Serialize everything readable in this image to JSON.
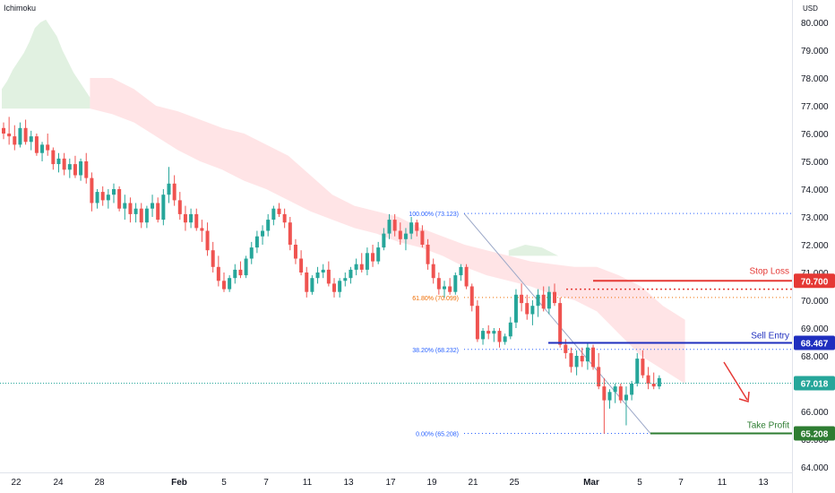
{
  "header": {
    "indicator": "Ichimoku",
    "currency": "USD"
  },
  "colors": {
    "up": "#26a69a",
    "down": "#ef5350",
    "cloud_bull": "#c8e6c9",
    "cloud_bear": "#ffcdd2",
    "stop_loss": "#e53935",
    "sell_entry": "#1f2fbf",
    "take_profit": "#2e7d32",
    "current": "#26a69a",
    "fib_blue": "#2962ff",
    "fib_orange": "#ef6c00"
  },
  "chart_data": {
    "type": "candlestick",
    "yaxis": {
      "ticks": [
        "64.000",
        "65.000",
        "66.000",
        "67.000",
        "68.000",
        "69.000",
        "70.000",
        "71.000",
        "72.000",
        "73.000",
        "74.000",
        "75.000",
        "76.000",
        "77.000",
        "78.000",
        "79.000",
        "80.000"
      ],
      "ylim": [
        64,
        80.5
      ]
    },
    "xaxis": {
      "ticks": [
        "22",
        "24",
        "28",
        "Feb",
        "5",
        "7",
        "11",
        "13",
        "17",
        "19",
        "21",
        "25",
        "Mar",
        "5",
        "7",
        "11",
        "13"
      ]
    },
    "candles": [
      [
        76.2,
        76.4,
        75.8,
        76.0
      ],
      [
        76.0,
        76.6,
        75.6,
        75.9
      ],
      [
        75.9,
        76.3,
        75.4,
        75.6
      ],
      [
        75.6,
        76.4,
        75.5,
        76.2
      ],
      [
        76.2,
        76.5,
        75.6,
        75.7
      ],
      [
        75.7,
        76.1,
        75.4,
        75.9
      ],
      [
        75.9,
        76.0,
        75.2,
        75.3
      ],
      [
        75.3,
        75.7,
        75.0,
        75.6
      ],
      [
        75.6,
        76.0,
        75.2,
        75.4
      ],
      [
        75.4,
        75.5,
        74.7,
        74.9
      ],
      [
        74.9,
        75.3,
        74.6,
        75.1
      ],
      [
        75.1,
        75.3,
        74.5,
        74.7
      ],
      [
        74.7,
        75.1,
        74.4,
        74.9
      ],
      [
        74.9,
        75.2,
        74.4,
        74.5
      ],
      [
        74.5,
        75.1,
        74.3,
        75.0
      ],
      [
        75.0,
        75.3,
        74.2,
        74.4
      ],
      [
        74.4,
        74.6,
        73.2,
        73.5
      ],
      [
        73.5,
        74.0,
        73.3,
        73.9
      ],
      [
        73.9,
        74.1,
        73.4,
        73.6
      ],
      [
        73.6,
        74.0,
        73.3,
        73.8
      ],
      [
        73.8,
        74.2,
        73.5,
        74.0
      ],
      [
        74.0,
        74.1,
        73.2,
        73.3
      ],
      [
        73.3,
        73.8,
        72.9,
        73.5
      ],
      [
        73.5,
        73.7,
        72.8,
        73.1
      ],
      [
        73.1,
        73.5,
        72.8,
        73.3
      ],
      [
        73.3,
        73.5,
        72.6,
        72.8
      ],
      [
        72.8,
        73.4,
        72.6,
        73.3
      ],
      [
        73.3,
        73.8,
        73.0,
        73.5
      ],
      [
        73.5,
        73.7,
        72.8,
        72.9
      ],
      [
        72.9,
        74.0,
        72.7,
        73.8
      ],
      [
        73.8,
        74.8,
        73.5,
        74.2
      ],
      [
        74.2,
        74.5,
        73.4,
        73.6
      ],
      [
        73.6,
        73.9,
        72.9,
        73.1
      ],
      [
        73.1,
        73.4,
        72.5,
        72.8
      ],
      [
        72.8,
        73.3,
        72.6,
        73.1
      ],
      [
        73.1,
        73.3,
        72.5,
        72.6
      ],
      [
        72.6,
        72.9,
        72.1,
        72.5
      ],
      [
        72.5,
        72.8,
        71.6,
        71.8
      ],
      [
        71.8,
        72.1,
        71.0,
        71.2
      ],
      [
        71.2,
        71.6,
        70.5,
        70.7
      ],
      [
        70.7,
        71.0,
        70.3,
        70.4
      ],
      [
        70.4,
        70.9,
        70.3,
        70.8
      ],
      [
        70.8,
        71.3,
        70.6,
        71.1
      ],
      [
        71.1,
        71.4,
        70.8,
        70.9
      ],
      [
        70.9,
        71.6,
        70.8,
        71.5
      ],
      [
        71.5,
        72.1,
        71.3,
        71.9
      ],
      [
        71.9,
        72.5,
        71.7,
        72.3
      ],
      [
        72.3,
        72.7,
        72.0,
        72.5
      ],
      [
        72.5,
        73.1,
        72.3,
        72.9
      ],
      [
        72.9,
        73.4,
        72.7,
        73.3
      ],
      [
        73.3,
        73.5,
        73.0,
        73.1
      ],
      [
        73.1,
        73.3,
        72.6,
        72.8
      ],
      [
        72.8,
        73.0,
        71.8,
        72.0
      ],
      [
        72.0,
        72.2,
        71.3,
        71.5
      ],
      [
        71.5,
        71.8,
        70.9,
        71.0
      ],
      [
        71.0,
        71.2,
        70.1,
        70.3
      ],
      [
        70.3,
        70.9,
        70.2,
        70.8
      ],
      [
        70.8,
        71.2,
        70.6,
        71.0
      ],
      [
        71.0,
        71.3,
        70.8,
        71.1
      ],
      [
        71.1,
        71.4,
        70.5,
        70.6
      ],
      [
        70.6,
        70.8,
        70.1,
        70.3
      ],
      [
        70.3,
        70.8,
        70.1,
        70.7
      ],
      [
        70.7,
        71.0,
        70.5,
        70.8
      ],
      [
        70.8,
        71.2,
        70.6,
        71.1
      ],
      [
        71.1,
        71.5,
        70.9,
        71.3
      ],
      [
        71.3,
        71.7,
        71.0,
        71.1
      ],
      [
        71.1,
        71.9,
        70.9,
        71.7
      ],
      [
        71.7,
        72.0,
        71.2,
        71.4
      ],
      [
        71.4,
        72.1,
        71.3,
        71.9
      ],
      [
        71.9,
        72.6,
        71.8,
        72.4
      ],
      [
        72.4,
        73.1,
        72.2,
        72.9
      ],
      [
        72.9,
        73.1,
        72.3,
        72.5
      ],
      [
        72.5,
        72.8,
        72.0,
        72.2
      ],
      [
        72.2,
        72.6,
        71.8,
        72.4
      ],
      [
        72.4,
        73.0,
        72.2,
        72.8
      ],
      [
        72.8,
        72.9,
        72.3,
        72.5
      ],
      [
        72.5,
        72.7,
        71.9,
        72.0
      ],
      [
        72.0,
        72.2,
        71.1,
        71.3
      ],
      [
        71.3,
        71.5,
        70.6,
        70.8
      ],
      [
        70.8,
        71.0,
        70.2,
        70.4
      ],
      [
        70.4,
        70.7,
        70.1,
        70.5
      ],
      [
        70.5,
        70.8,
        70.2,
        70.3
      ],
      [
        70.3,
        71.0,
        70.2,
        70.9
      ],
      [
        70.9,
        71.3,
        70.7,
        71.2
      ],
      [
        71.2,
        71.3,
        70.4,
        70.5
      ],
      [
        70.5,
        70.6,
        69.6,
        69.8
      ],
      [
        69.8,
        70.0,
        68.5,
        68.6
      ],
      [
        68.6,
        69.0,
        68.4,
        68.9
      ],
      [
        68.9,
        69.1,
        68.6,
        68.8
      ],
      [
        68.8,
        69.0,
        68.5,
        68.9
      ],
      [
        68.9,
        69.0,
        68.3,
        68.5
      ],
      [
        68.5,
        68.8,
        68.4,
        68.7
      ],
      [
        68.7,
        69.4,
        68.6,
        69.2
      ],
      [
        69.2,
        70.4,
        69.0,
        70.2
      ],
      [
        70.2,
        70.6,
        69.6,
        69.9
      ],
      [
        69.9,
        70.2,
        69.3,
        69.5
      ],
      [
        69.5,
        70.0,
        69.1,
        69.8
      ],
      [
        69.8,
        70.4,
        69.4,
        70.2
      ],
      [
        70.2,
        70.5,
        69.6,
        69.7
      ],
      [
        69.7,
        70.5,
        69.5,
        70.3
      ],
      [
        70.3,
        70.6,
        69.8,
        69.9
      ],
      [
        69.9,
        70.1,
        68.3,
        68.4
      ],
      [
        68.4,
        68.6,
        67.9,
        68.1
      ],
      [
        68.1,
        68.3,
        67.4,
        67.6
      ],
      [
        67.6,
        68.2,
        67.3,
        68.0
      ],
      [
        68.0,
        68.3,
        67.6,
        67.8
      ],
      [
        67.8,
        68.5,
        67.5,
        68.3
      ],
      [
        68.3,
        68.4,
        67.5,
        67.6
      ],
      [
        67.6,
        68.1,
        66.8,
        66.9
      ],
      [
        66.9,
        67.2,
        65.2,
        66.4
      ],
      [
        66.4,
        66.8,
        66.1,
        66.7
      ],
      [
        66.7,
        67.0,
        66.3,
        66.9
      ],
      [
        66.9,
        67.0,
        66.3,
        66.4
      ],
      [
        66.4,
        66.9,
        65.5,
        66.6
      ],
      [
        66.6,
        67.1,
        66.4,
        67.0
      ],
      [
        67.0,
        68.1,
        66.9,
        67.9
      ],
      [
        67.9,
        68.2,
        67.2,
        67.3
      ],
      [
        67.3,
        67.6,
        66.8,
        67.0
      ],
      [
        67.0,
        67.4,
        66.8,
        66.9
      ],
      [
        66.9,
        67.3,
        66.8,
        67.2
      ]
    ],
    "cloud_bull": {
      "x": [
        0,
        1,
        2,
        3,
        4,
        5,
        6,
        7,
        8,
        9,
        10,
        11,
        12,
        13,
        14,
        15,
        16
      ],
      "top": [
        77.6,
        77.9,
        78.3,
        78.6,
        78.9,
        79.3,
        79.8,
        80.0,
        80.1,
        79.8,
        79.5,
        79.0,
        78.6,
        78.2,
        77.9,
        77.6,
        77.3
      ],
      "bottom": [
        76.9,
        76.9,
        76.9,
        76.9,
        76.9,
        76.9,
        76.9,
        76.9,
        76.9,
        76.9,
        76.9,
        76.9,
        76.9,
        76.9,
        76.9,
        76.9,
        76.9
      ]
    },
    "cloud_bear": {
      "x": [
        16,
        20,
        24,
        28,
        32,
        36,
        40,
        44,
        48,
        52,
        56,
        60,
        64,
        68,
        72,
        76,
        80,
        84,
        88,
        92,
        96,
        100,
        104,
        108,
        112,
        116,
        120,
        124
      ],
      "top": [
        78.0,
        78.0,
        77.6,
        77.0,
        76.8,
        76.5,
        76.2,
        76.0,
        75.6,
        75.2,
        74.5,
        73.8,
        73.4,
        73.2,
        73.0,
        72.6,
        72.3,
        72.0,
        71.8,
        71.6,
        71.4,
        71.3,
        71.2,
        71.2,
        70.9,
        70.5,
        69.8,
        69.3
      ],
      "bottom": [
        76.9,
        76.7,
        76.4,
        75.9,
        75.4,
        75.0,
        74.7,
        74.3,
        74.0,
        73.6,
        73.2,
        72.9,
        72.6,
        72.4,
        72.1,
        71.9,
        71.6,
        71.2,
        70.9,
        70.7,
        70.5,
        70.2,
        70.0,
        69.6,
        68.8,
        68.0,
        67.5,
        67.0
      ]
    },
    "cloud_bull_small": {
      "x": [
        92,
        95,
        98,
        101
      ],
      "top": [
        71.8,
        72.0,
        71.9,
        71.6
      ],
      "bottom": [
        71.6,
        71.6,
        71.6,
        71.6
      ]
    },
    "fib_levels": [
      {
        "label": "100.00% (73.123)",
        "value": 73.123,
        "color": "blue"
      },
      {
        "label": "61.80% (70.099)",
        "value": 70.099,
        "color": "orange"
      },
      {
        "label": "38.20% (68.232)",
        "value": 68.232,
        "color": "blue"
      },
      {
        "label": "0.00% (65.208)",
        "value": 65.208,
        "color": "blue"
      }
    ],
    "levels": {
      "stop_loss": {
        "label": "Stop Loss",
        "value": 70.7,
        "price": "70.700"
      },
      "sell_entry": {
        "label": "Sell Entry",
        "value": 68.467,
        "price": "68.467"
      },
      "take_profit": {
        "label": "Take Profit",
        "value": 65.208,
        "price": "65.208"
      },
      "current": {
        "value": 67.018,
        "price": "67.018"
      }
    }
  }
}
